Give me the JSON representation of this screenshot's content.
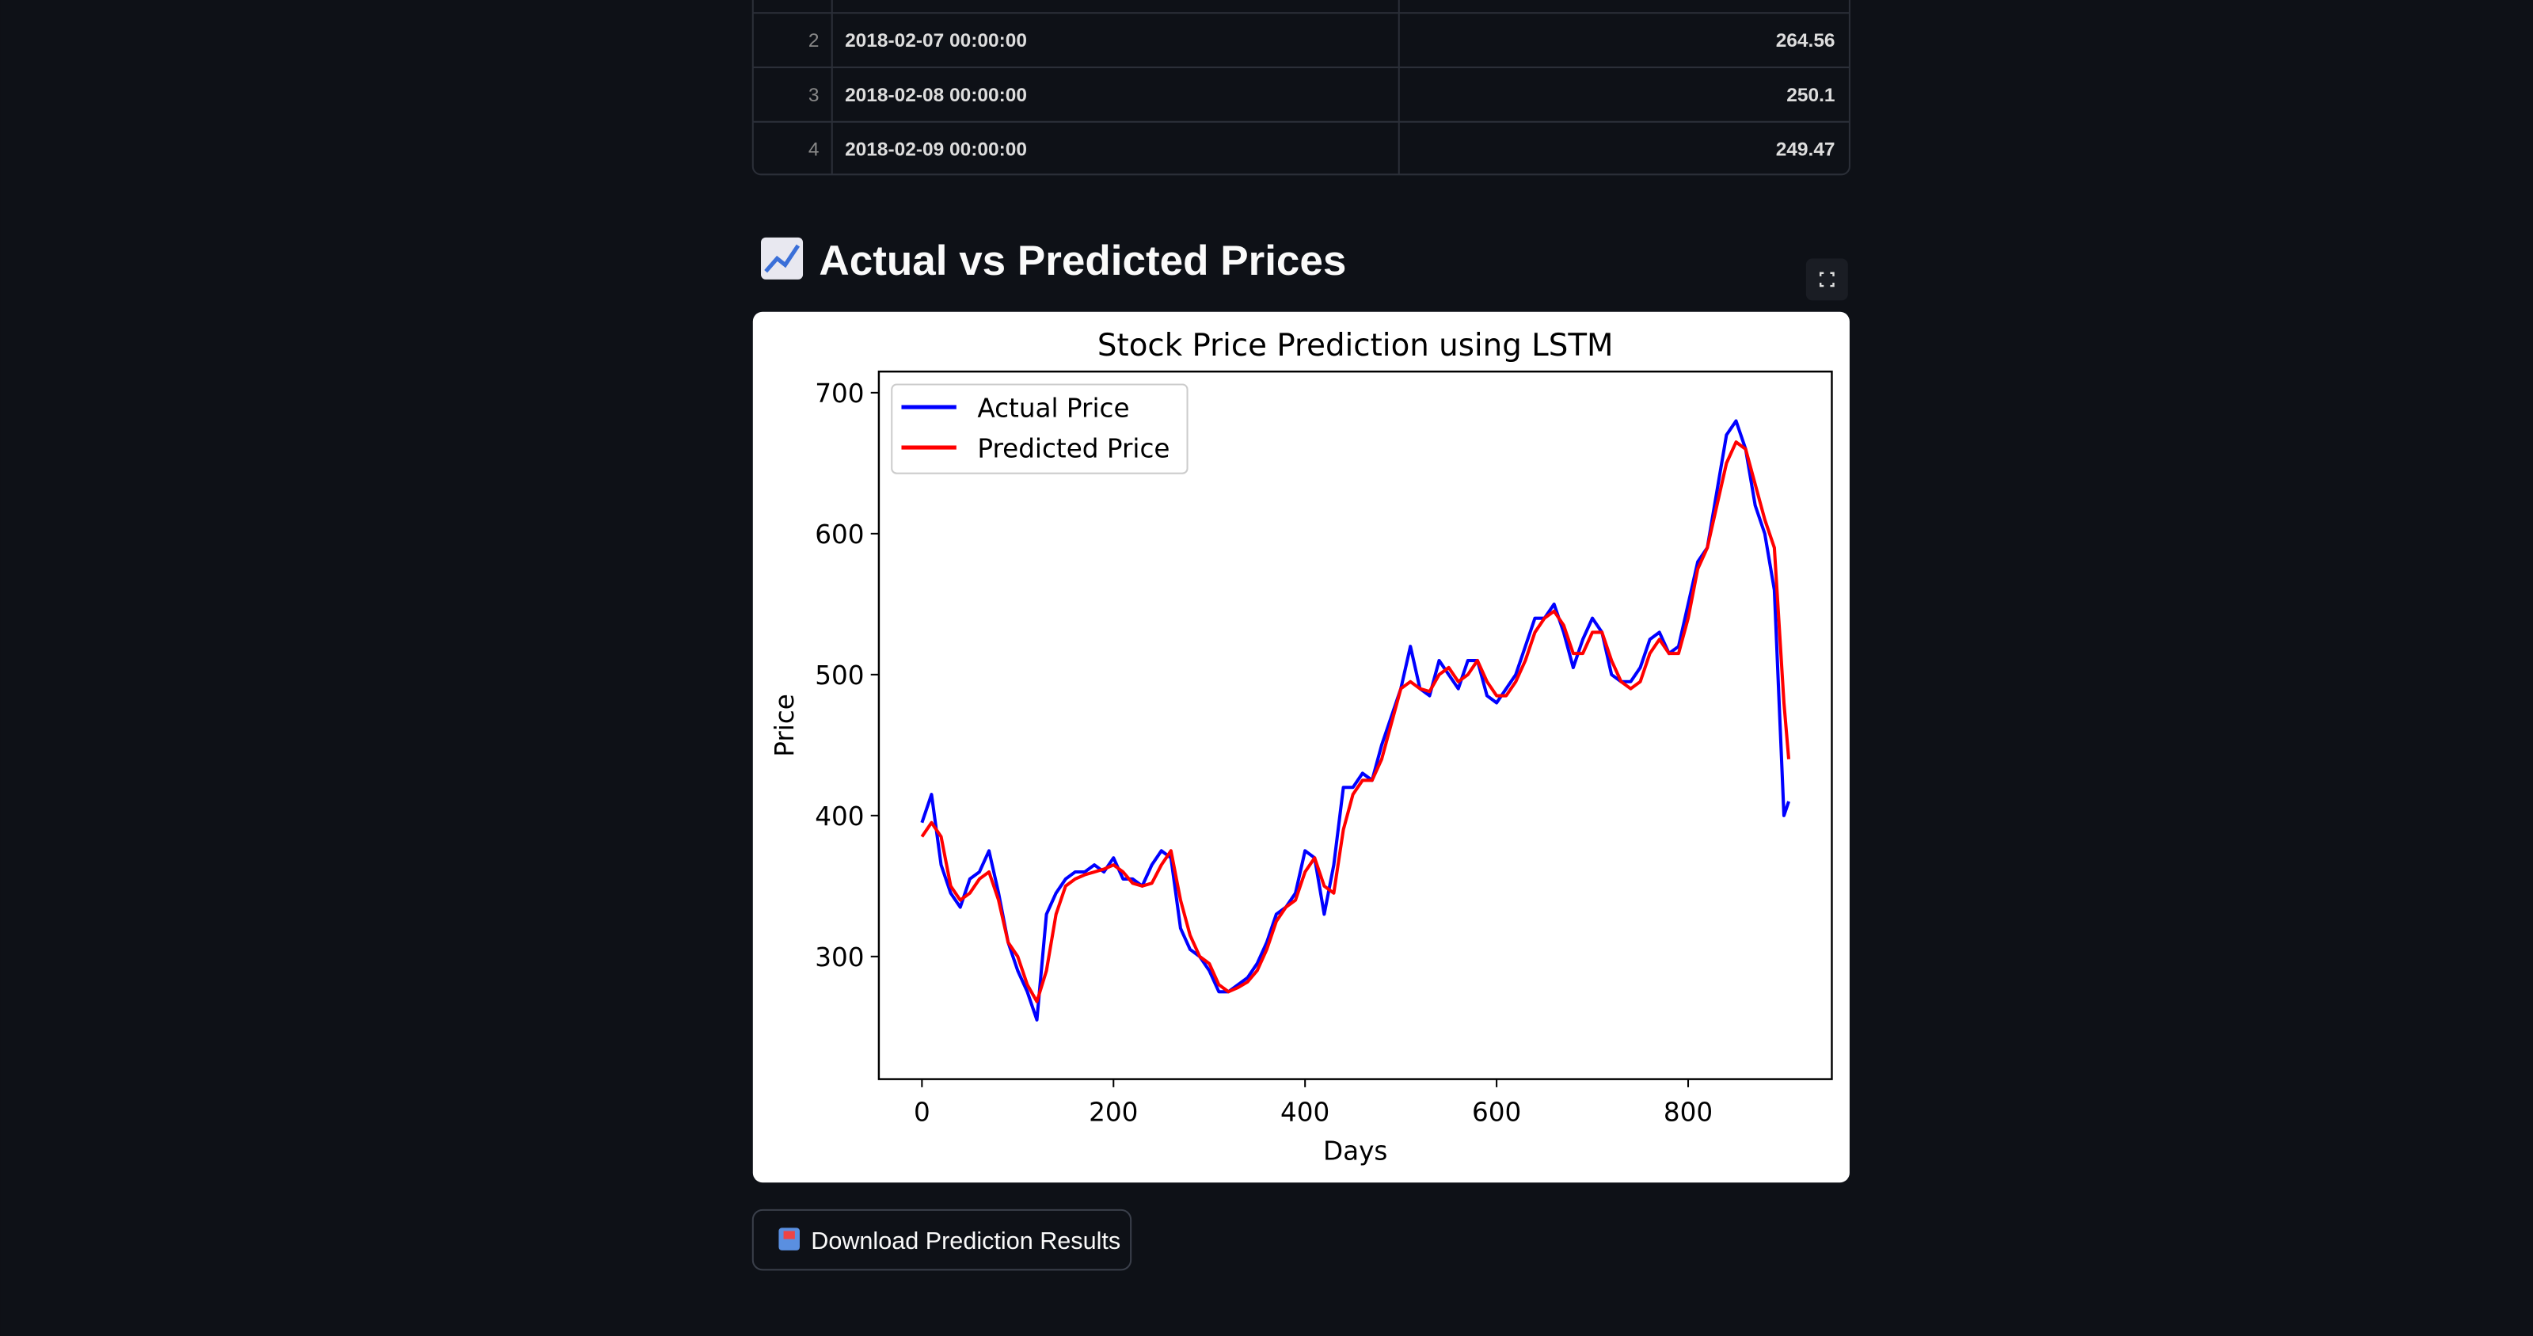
{
  "table": {
    "rows": [
      [
        2,
        "2018-02-07 00:00:00",
        264.56
      ],
      [
        3,
        "2018-02-08 00:00:00",
        250.1
      ],
      [
        4,
        "2018-02-09 00:00:00",
        249.47
      ]
    ]
  },
  "heading": "Actual vs Predicted Prices",
  "chart_data": {
    "type": "line",
    "title": "Stock Price Prediction using LSTM",
    "x_label": "Days",
    "y_label": "Price",
    "x": [
      0,
      10,
      20,
      30,
      40,
      50,
      60,
      70,
      80,
      90,
      100,
      110,
      120,
      130,
      140,
      150,
      160,
      170,
      180,
      190,
      200,
      210,
      220,
      230,
      240,
      250,
      260,
      270,
      280,
      290,
      300,
      310,
      320,
      330,
      340,
      350,
      360,
      370,
      380,
      390,
      400,
      410,
      420,
      430,
      440,
      450,
      460,
      470,
      480,
      490,
      500,
      510,
      520,
      530,
      540,
      550,
      560,
      570,
      580,
      590,
      600,
      610,
      620,
      630,
      640,
      650,
      660,
      670,
      680,
      690,
      700,
      710,
      720,
      730,
      740,
      750,
      760,
      770,
      780,
      790,
      800,
      810,
      820,
      830,
      840,
      850,
      860,
      870,
      880,
      890,
      900,
      905
    ],
    "series": [
      {
        "name": "Actual Price",
        "color": "#0000ff",
        "values": [
          395,
          415,
          365,
          345,
          335,
          355,
          360,
          375,
          345,
          310,
          290,
          275,
          255,
          330,
          345,
          355,
          360,
          360,
          365,
          360,
          370,
          355,
          355,
          350,
          365,
          375,
          370,
          320,
          305,
          300,
          290,
          275,
          275,
          280,
          285,
          295,
          310,
          330,
          335,
          345,
          375,
          370,
          330,
          365,
          420,
          420,
          430,
          425,
          450,
          470,
          490,
          520,
          490,
          485,
          510,
          500,
          490,
          510,
          510,
          485,
          480,
          490,
          500,
          520,
          540,
          540,
          550,
          530,
          505,
          525,
          540,
          530,
          500,
          495,
          495,
          505,
          525,
          530,
          515,
          520,
          550,
          580,
          590,
          630,
          670,
          680,
          660,
          620,
          600,
          560,
          400,
          410
        ]
      },
      {
        "name": "Predicted Price",
        "color": "#ff0000",
        "values": [
          385,
          395,
          385,
          350,
          340,
          345,
          355,
          360,
          340,
          310,
          300,
          280,
          268,
          290,
          330,
          350,
          355,
          358,
          360,
          362,
          365,
          360,
          352,
          350,
          352,
          365,
          375,
          340,
          315,
          300,
          295,
          280,
          275,
          278,
          282,
          290,
          305,
          325,
          335,
          340,
          360,
          370,
          350,
          345,
          390,
          415,
          425,
          425,
          440,
          465,
          490,
          495,
          490,
          488,
          500,
          505,
          495,
          500,
          510,
          495,
          485,
          485,
          495,
          510,
          530,
          540,
          545,
          535,
          515,
          515,
          530,
          530,
          510,
          495,
          490,
          495,
          515,
          525,
          515,
          515,
          540,
          575,
          590,
          620,
          650,
          665,
          660,
          635,
          610,
          590,
          480,
          440
        ]
      }
    ],
    "xlim": [
      -45,
      950
    ],
    "ylim": [
      213,
      715
    ],
    "xticks": [
      0,
      200,
      400,
      600,
      800
    ],
    "yticks": [
      300,
      400,
      500,
      600,
      700
    ],
    "legend": "upper left"
  },
  "button": "Download Prediction Results"
}
